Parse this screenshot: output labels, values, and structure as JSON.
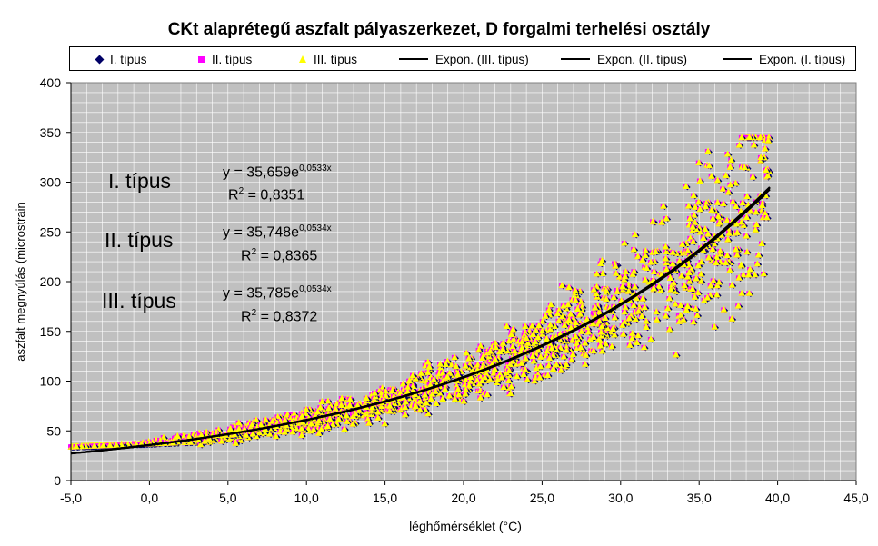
{
  "chart_data": {
    "type": "scatter",
    "title": "CKt alaprétegű aszfalt pályaszerkezet, D forgalmi terhelési osztály",
    "xlabel": "léghőmérséklet (°C)",
    "ylabel": "aszfalt megnyúlás (microstrain",
    "xlim": [
      -5,
      45
    ],
    "ylim": [
      0,
      400
    ],
    "x_ticks": [
      "-5,0",
      "0,0",
      "5,0",
      "10,0",
      "15,0",
      "20,0",
      "25,0",
      "30,0",
      "35,0",
      "40,0",
      "45,0"
    ],
    "y_ticks": [
      "0",
      "50",
      "100",
      "150",
      "200",
      "250",
      "300",
      "350",
      "400"
    ],
    "x_tick_values": [
      -5,
      0,
      5,
      10,
      15,
      20,
      25,
      30,
      35,
      40,
      45
    ],
    "y_tick_values": [
      0,
      50,
      100,
      150,
      200,
      250,
      300,
      350,
      400
    ],
    "grid": true,
    "legend_placement": "top",
    "colors": {
      "plot_bg": "#c0c0c0",
      "type1": "#000066",
      "type2": "#ff00ff",
      "type3": "#ffff00",
      "trend": "#000000"
    },
    "series": [
      {
        "name": "I. típus",
        "marker": "diamond",
        "color": "#000066",
        "x_range": [
          -5,
          39.5
        ],
        "y_range": [
          30,
          345
        ]
      },
      {
        "name": "II. típus",
        "marker": "square",
        "color": "#ff00ff",
        "x_range": [
          -5,
          39.5
        ],
        "y_range": [
          30,
          345
        ]
      },
      {
        "name": "III. típus",
        "marker": "triangle",
        "color": "#ffff00",
        "x_range": [
          -5,
          39.5
        ],
        "y_range": [
          30,
          345
        ]
      }
    ],
    "legend_entries": [
      "I. típus",
      "II. típus",
      "III. típus",
      "Expon. (III. típus)",
      "Expon. (II. típus)",
      "Expon. (I. típus)"
    ],
    "trendlines": [
      {
        "name": "Expon. (I. típus)",
        "a": 35.659,
        "b": 0.0533,
        "equation_base": "y = 35,659e",
        "exponent": "0,0533x",
        "r2_value": " = 0,8351"
      },
      {
        "name": "Expon. (II. típus)",
        "a": 35.748,
        "b": 0.0534,
        "equation_base": "y = 35,748e",
        "exponent": "0,0534x",
        "r2_value": " = 0,8365"
      },
      {
        "name": "Expon. (III. típus)",
        "a": 35.785,
        "b": 0.0534,
        "equation_base": "y = 35,785e",
        "exponent": "0,0534x",
        "r2_value": " = 0,8372"
      }
    ],
    "annotations": {
      "type_labels": [
        "I. típus",
        "II. típus",
        "III. típus"
      ],
      "r2_prefix": "R"
    }
  }
}
